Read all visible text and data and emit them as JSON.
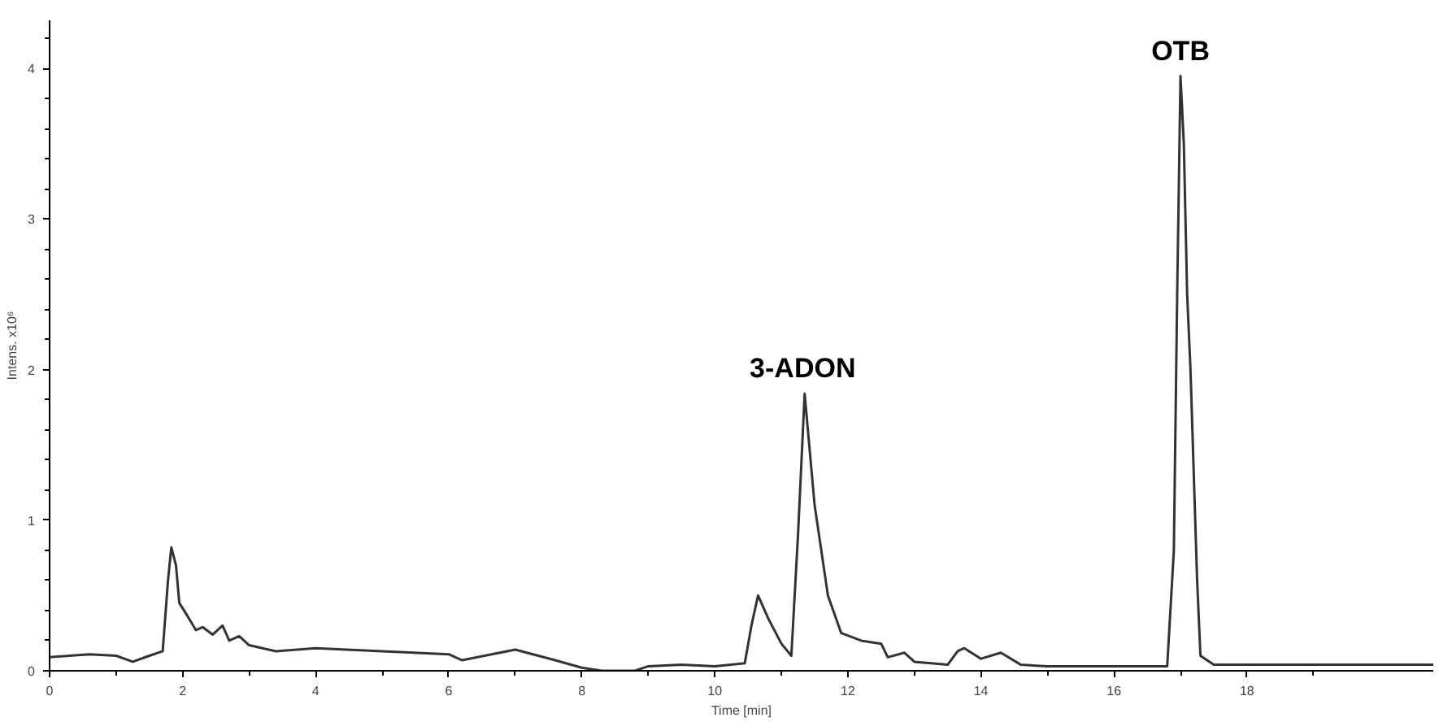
{
  "chart_data": {
    "type": "line",
    "xlabel": "Time [min]",
    "ylabel": "Intens. x10⁶",
    "x": [
      0,
      0.3,
      0.6,
      1.0,
      1.25,
      1.5,
      1.7,
      1.78,
      1.83,
      1.9,
      1.95,
      2.05,
      2.2,
      2.3,
      2.45,
      2.6,
      2.7,
      2.85,
      3.0,
      3.4,
      4.0,
      5.0,
      6.0,
      6.2,
      7.0,
      7.6,
      8.0,
      8.3,
      8.8,
      9.0,
      9.5,
      10.0,
      10.45,
      10.55,
      10.65,
      10.8,
      11.0,
      11.15,
      11.25,
      11.35,
      11.5,
      11.7,
      11.9,
      12.2,
      12.5,
      12.6,
      12.85,
      13.0,
      13.5,
      13.65,
      13.75,
      14.0,
      14.3,
      14.6,
      15.0,
      16.8,
      16.9,
      16.95,
      17.0,
      17.05,
      17.1,
      17.15,
      17.25,
      17.3,
      17.5,
      19.0,
      20.8
    ],
    "values": [
      0.09,
      0.1,
      0.11,
      0.1,
      0.06,
      0.1,
      0.13,
      0.6,
      0.82,
      0.7,
      0.45,
      0.38,
      0.27,
      0.29,
      0.24,
      0.3,
      0.2,
      0.23,
      0.17,
      0.13,
      0.15,
      0.13,
      0.11,
      0.07,
      0.14,
      0.07,
      0.02,
      0.0,
      0.0,
      0.03,
      0.04,
      0.03,
      0.05,
      0.3,
      0.5,
      0.35,
      0.18,
      0.1,
      0.9,
      1.84,
      1.1,
      0.5,
      0.25,
      0.2,
      0.18,
      0.09,
      0.12,
      0.06,
      0.04,
      0.13,
      0.15,
      0.08,
      0.12,
      0.04,
      0.03,
      0.03,
      0.8,
      2.5,
      3.95,
      3.5,
      2.5,
      2.0,
      0.6,
      0.1,
      0.04,
      0.04,
      0.04
    ],
    "color": "#333333",
    "line_style": "solid",
    "marker": "none",
    "grid": false,
    "xlim": [
      0,
      20.8
    ],
    "ylim": [
      0,
      4.32
    ],
    "xticks": [
      0,
      {
        "value": 1,
        "label": null
      },
      2,
      {
        "value": 3,
        "label": null
      },
      4,
      {
        "value": 5,
        "label": null
      },
      6,
      {
        "value": 7,
        "label": null
      },
      8,
      {
        "value": 9,
        "label": null
      },
      10,
      {
        "value": 11,
        "label": null
      },
      12,
      {
        "value": 13,
        "label": null
      },
      14,
      {
        "value": 15,
        "label": null
      },
      16,
      {
        "value": 17,
        "label": null
      },
      18,
      {
        "value": 19,
        "label": null
      }
    ],
    "yticks": [
      0,
      {
        "value": 0.2,
        "label": null
      },
      {
        "value": 0.4,
        "label": null
      },
      {
        "value": 0.6,
        "label": null
      },
      {
        "value": 0.8,
        "label": null
      },
      1,
      {
        "value": 1.2,
        "label": null
      },
      {
        "value": 1.4,
        "label": null
      },
      {
        "value": 1.6,
        "label": null
      },
      {
        "value": 1.8,
        "label": null
      },
      2,
      {
        "value": 2.2,
        "label": null
      },
      {
        "value": 2.4,
        "label": null
      },
      {
        "value": 2.6,
        "label": null
      },
      {
        "value": 2.8,
        "label": null
      },
      3,
      {
        "value": 3.2,
        "label": null
      },
      {
        "value": 3.4,
        "label": null
      },
      {
        "value": 3.6,
        "label": null
      },
      {
        "value": 3.8,
        "label": null
      },
      4,
      {
        "value": 4.2,
        "label": null
      }
    ],
    "annotations": [
      {
        "text": "3-ADON",
        "x": 11.32,
        "y": 1.84
      },
      {
        "text": "OTB",
        "x": 17.0,
        "y": 3.95
      }
    ]
  }
}
